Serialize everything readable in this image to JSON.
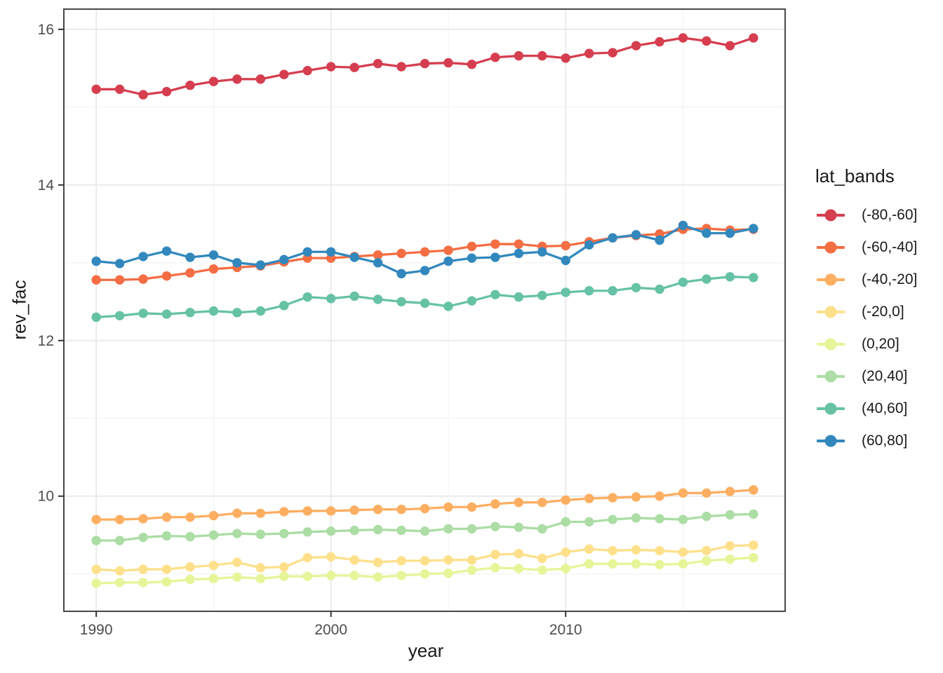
{
  "chart_data": {
    "type": "line",
    "title": "",
    "xlabel": "year",
    "ylabel": "rev_fac",
    "legend_title": "lat_bands",
    "legend_position": "right",
    "grid": "major+minor",
    "xlim": [
      1988.62,
      2019.35
    ],
    "ylim": [
      8.52,
      16.26
    ],
    "x_ticks": {
      "values": [
        1990,
        2000,
        2010
      ],
      "labels": [
        "1990",
        "2000",
        "2010"
      ]
    },
    "x_minor": [
      1995,
      2005,
      2015
    ],
    "y_ticks": {
      "values": [
        10,
        12,
        14,
        16
      ],
      "labels": [
        "10",
        "12",
        "14",
        "16"
      ]
    },
    "y_minor": [
      9,
      11,
      13,
      15
    ],
    "x": [
      1990,
      1991,
      1992,
      1993,
      1994,
      1995,
      1996,
      1997,
      1998,
      1999,
      2000,
      2001,
      2002,
      2003,
      2004,
      2005,
      2006,
      2007,
      2008,
      2009,
      2010,
      2011,
      2012,
      2013,
      2014,
      2015,
      2016,
      2017,
      2018
    ],
    "axis_text_color": "#4d4d4d",
    "panel_border_color": "#333333",
    "grid_major_color": "#e8e8e8",
    "grid_minor_color": "#f2f2f2",
    "series": [
      {
        "name": "(-80,-60]",
        "color": "#d53e4f",
        "values": [
          15.23,
          15.23,
          15.16,
          15.2,
          15.28,
          15.33,
          15.36,
          15.36,
          15.42,
          15.47,
          15.52,
          15.51,
          15.56,
          15.52,
          15.56,
          15.57,
          15.55,
          15.64,
          15.66,
          15.66,
          15.63,
          15.69,
          15.7,
          15.79,
          15.84,
          15.89,
          15.85,
          15.79,
          15.89
        ]
      },
      {
        "name": "(-60,-40]",
        "color": "#f46d43",
        "values": [
          12.78,
          12.78,
          12.79,
          12.83,
          12.87,
          12.92,
          12.94,
          12.96,
          13.01,
          13.06,
          13.06,
          13.08,
          13.1,
          13.12,
          13.14,
          13.16,
          13.21,
          13.24,
          13.24,
          13.21,
          13.22,
          13.27,
          13.32,
          13.35,
          13.37,
          13.43,
          13.44,
          13.42,
          13.43
        ]
      },
      {
        "name": "(-40,-20]",
        "color": "#fdae61",
        "values": [
          9.7,
          9.7,
          9.71,
          9.73,
          9.73,
          9.75,
          9.78,
          9.78,
          9.8,
          9.81,
          9.81,
          9.82,
          9.83,
          9.83,
          9.84,
          9.86,
          9.86,
          9.9,
          9.92,
          9.92,
          9.95,
          9.97,
          9.98,
          9.99,
          10.0,
          10.04,
          10.04,
          10.06,
          10.08
        ]
      },
      {
        "name": "(-20,0]",
        "color": "#fee08b",
        "values": [
          9.06,
          9.04,
          9.06,
          9.06,
          9.09,
          9.11,
          9.15,
          9.08,
          9.09,
          9.21,
          9.22,
          9.18,
          9.15,
          9.17,
          9.17,
          9.18,
          9.18,
          9.25,
          9.26,
          9.2,
          9.28,
          9.32,
          9.3,
          9.31,
          9.3,
          9.28,
          9.3,
          9.36,
          9.37
        ]
      },
      {
        "name": "(0,20]",
        "color": "#e6f598",
        "values": [
          8.88,
          8.89,
          8.89,
          8.9,
          8.93,
          8.94,
          8.96,
          8.94,
          8.97,
          8.97,
          8.98,
          8.98,
          8.96,
          8.98,
          9.0,
          9.01,
          9.05,
          9.08,
          9.07,
          9.05,
          9.07,
          9.13,
          9.13,
          9.13,
          9.12,
          9.13,
          9.17,
          9.19,
          9.21
        ]
      },
      {
        "name": "(20,40]",
        "color": "#abdda4",
        "values": [
          9.43,
          9.43,
          9.47,
          9.49,
          9.48,
          9.5,
          9.52,
          9.51,
          9.52,
          9.54,
          9.55,
          9.56,
          9.57,
          9.56,
          9.55,
          9.58,
          9.58,
          9.61,
          9.6,
          9.58,
          9.67,
          9.67,
          9.7,
          9.72,
          9.71,
          9.7,
          9.74,
          9.76,
          9.77
        ]
      },
      {
        "name": "(40,60]",
        "color": "#66c2a5",
        "values": [
          12.3,
          12.32,
          12.35,
          12.34,
          12.36,
          12.38,
          12.36,
          12.38,
          12.45,
          12.56,
          12.54,
          12.57,
          12.53,
          12.5,
          12.48,
          12.44,
          12.51,
          12.59,
          12.56,
          12.58,
          12.62,
          12.64,
          12.64,
          12.68,
          12.66,
          12.75,
          12.79,
          12.82,
          12.81
        ]
      },
      {
        "name": "(60,80]",
        "color": "#3288bd",
        "values": [
          13.02,
          12.99,
          13.08,
          13.15,
          13.07,
          13.1,
          13.0,
          12.97,
          13.04,
          13.14,
          13.14,
          13.07,
          13.0,
          12.86,
          12.9,
          13.02,
          13.06,
          13.07,
          13.12,
          13.14,
          13.03,
          13.23,
          13.32,
          13.36,
          13.29,
          13.48,
          13.38,
          13.38,
          13.44
        ]
      }
    ]
  }
}
